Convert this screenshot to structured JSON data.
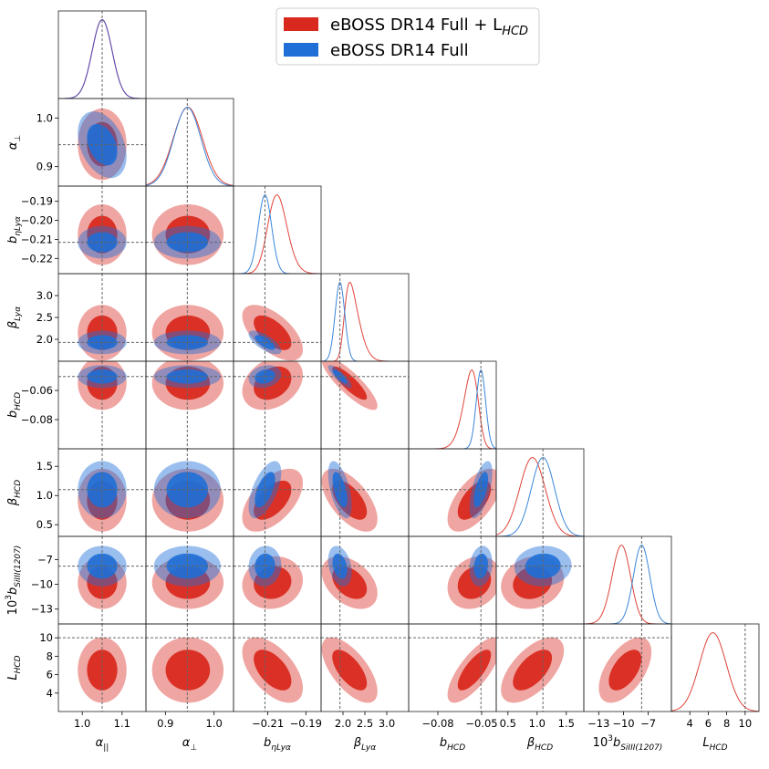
{
  "chart_data": {
    "type": "triangle-corner",
    "title": "",
    "colors": {
      "full_lhcd_fill": "#d9291f",
      "full_lhcd_line": "#e0443a",
      "full_fill": "#1f6fd6",
      "full_line": "#3b86d9",
      "frame": "#222222",
      "ref": "#666666"
    },
    "legend": {
      "position": "top-right",
      "entries": [
        {
          "label": "eBOSS DR14 Full + L",
          "label_sub": "HCD",
          "color": "#d9291f"
        },
        {
          "label": "eBOSS DR14 Full",
          "color": "#1f6fd6"
        }
      ]
    },
    "parameters": [
      {
        "key": "apar",
        "label_base": "α",
        "label_sub": "||",
        "label_sup": "",
        "range": [
          0.94,
          1.16
        ],
        "ticks": [
          1.0,
          1.1
        ],
        "tick_labels": [
          "1.0",
          "1.1"
        ],
        "yticks": null,
        "ytick_labels": null,
        "ref": 1.05,
        "full_mean": 1.05,
        "full_sd": 0.025
      },
      {
        "key": "aperp",
        "label_base": "α",
        "label_sub": "⊥",
        "label_sup": "",
        "range": [
          0.86,
          1.04
        ],
        "ticks": [
          0.9,
          1.0
        ],
        "tick_labels": [
          "0.9",
          "1.0"
        ],
        "yticks": [
          0.9,
          1.0
        ],
        "ytick_labels": [
          "0.9",
          "1.0"
        ],
        "ref": 0.945,
        "full_mean": 0.945,
        "full_sd": 0.028,
        "lhcd_mean": 0.946,
        "lhcd_sd": 0.03
      },
      {
        "key": "beta_eta",
        "label_base": "b",
        "label_sub": "ηLyα",
        "label_sup": "",
        "range": [
          -0.228,
          -0.182
        ],
        "ticks": [
          -0.21,
          -0.19
        ],
        "tick_labels": [
          "−0.21",
          "−0.19"
        ],
        "yticks": [
          -0.22,
          -0.21,
          -0.2,
          -0.19
        ],
        "ytick_labels": [
          "−0.22",
          "−0.21",
          "−0.20",
          "−0.19"
        ],
        "ref": -0.2115,
        "full_mean": -0.2115,
        "full_sd": 0.0035,
        "lhcd_mean": -0.2075,
        "lhcd_sd": 0.0065
      },
      {
        "key": "beta_lya",
        "label_base": "β",
        "label_sub": "Lyα",
        "label_sup": "",
        "range": [
          1.5,
          3.5
        ],
        "ticks": [
          2.0,
          2.5,
          3.0
        ],
        "tick_labels": [
          "2.0",
          "2.5",
          "3.0"
        ],
        "yticks": [
          2.0,
          2.5,
          3.0
        ],
        "ytick_labels": [
          "2.0",
          "2.5",
          "3.0"
        ],
        "ref": 1.93,
        "full_mean": 1.93,
        "full_sd": 0.11,
        "lhcd_mean": 2.15,
        "lhcd_sd": 0.26
      },
      {
        "key": "b_hcd",
        "label_base": "b",
        "label_sub": "HCD",
        "label_sup": "",
        "range": [
          -0.1,
          -0.04
        ],
        "ticks": [
          -0.08,
          -0.05
        ],
        "tick_labels": [
          "−0.08",
          "−0.05"
        ],
        "yticks": [
          -0.08,
          -0.06
        ],
        "ytick_labels": [
          "−0.08",
          "−0.06"
        ],
        "ref": -0.0505,
        "full_mean": -0.0505,
        "full_sd": 0.0032,
        "lhcd_mean": -0.055,
        "lhcd_sd": 0.0075
      },
      {
        "key": "beta_hcd",
        "label_base": "β",
        "label_sub": "HCD",
        "label_sup": "",
        "range": [
          0.3,
          1.8
        ],
        "ticks": [
          0.5,
          1.0,
          1.5
        ],
        "tick_labels": [
          "0.5",
          "1.0",
          "1.5"
        ],
        "yticks": [
          0.5,
          1.0,
          1.5
        ],
        "ytick_labels": [
          "0.5",
          "1.0",
          "1.5"
        ],
        "ref": 1.1,
        "full_mean": 1.1,
        "full_sd": 0.2,
        "lhcd_mean": 0.92,
        "lhcd_sd": 0.22
      },
      {
        "key": "b_si",
        "label_base": "10",
        "label_sub": "SiIII(1207)",
        "label_sup": "3",
        "label_mid": "b",
        "range": [
          -14.8,
          -4.2
        ],
        "ticks": [
          -13,
          -10,
          -7
        ],
        "tick_labels": [
          "−13",
          "−10",
          "−7"
        ],
        "yticks": [
          -13,
          -10,
          -7
        ],
        "ytick_labels": [
          "−13",
          "−10",
          "−7"
        ],
        "ref": -7.8,
        "full_mean": -7.8,
        "full_sd": 1.0,
        "lhcd_mean": -9.8,
        "lhcd_sd": 1.3
      },
      {
        "key": "l_hcd",
        "label_base": "L",
        "label_sub": "HCD",
        "label_sup": "",
        "range": [
          2.0,
          11.5
        ],
        "ticks": [
          4,
          6,
          8,
          10
        ],
        "tick_labels": [
          "4",
          "6",
          "8",
          "10"
        ],
        "yticks": [
          4,
          6,
          8,
          10
        ],
        "ytick_labels": [
          "4",
          "6",
          "8",
          "10"
        ],
        "ref": 10.0,
        "lhcd_mean": 6.5,
        "lhcd_sd": 1.45
      }
    ],
    "correlations": {
      "full": {
        "0-1": -0.35,
        "2-3": -0.7,
        "2-4": 0.2,
        "2-5": 0.6,
        "2-6": 0.05,
        "3-4": -0.85,
        "3-5": -0.55,
        "3-6": -0.3,
        "4-5": 0.6,
        "4-6": 0.15,
        "5-6": 0.05
      },
      "lhcd": {
        "2-3": -0.6,
        "2-4": 0.3,
        "2-5": 0.55,
        "2-6": 0.1,
        "2-7": -0.55,
        "3-4": -0.85,
        "3-5": -0.6,
        "3-6": -0.4,
        "3-7": -0.65,
        "4-5": 0.6,
        "4-6": 0.2,
        "4-7": 0.75,
        "5-6": 0.15,
        "5-7": 0.6,
        "6-7": 0.55
      }
    }
  }
}
